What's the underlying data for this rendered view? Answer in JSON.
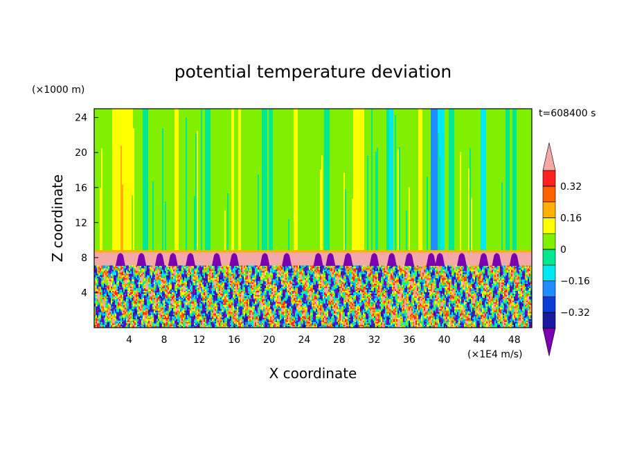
{
  "chart_data": {
    "type": "heatmap",
    "title": "potential temperature deviation",
    "xlabel": "X coordinate",
    "ylabel": "Z coordinate",
    "x_unit": "(×1E4 m/s)",
    "y_unit": "(×1000 m)",
    "time_label": "t=608400 s",
    "xlim": [
      0,
      50
    ],
    "ylim": [
      0,
      25
    ],
    "x_ticks": [
      4,
      8,
      12,
      16,
      20,
      24,
      28,
      32,
      36,
      40,
      44,
      48
    ],
    "y_ticks": [
      4,
      8,
      12,
      16,
      20,
      24
    ],
    "colorbar": {
      "levels": [
        -0.48,
        -0.4,
        -0.32,
        -0.24,
        -0.16,
        -0.08,
        0,
        0.08,
        0.16,
        0.24,
        0.32,
        0.4
      ],
      "colors": [
        "#7a00b0",
        "#1a1aa0",
        "#0a3cd8",
        "#1f8cff",
        "#00e8f0",
        "#00e890",
        "#80f000",
        "#ffff00",
        "#ffb000",
        "#ff6000",
        "#ff2020",
        "#f4a8a8"
      ],
      "labels": [
        "0.32",
        "0.16",
        "0",
        "−0.16",
        "−0.32"
      ],
      "label_values": [
        0.32,
        0.16,
        0,
        -0.16,
        -0.32
      ],
      "extend": "both"
    },
    "field_description_values": {
      "upper_layer_dominant": 0.04,
      "inversion_layer": 0.44,
      "boundary_z": 8.3,
      "lower_layer_range": [
        -0.44,
        0.4
      ]
    }
  }
}
